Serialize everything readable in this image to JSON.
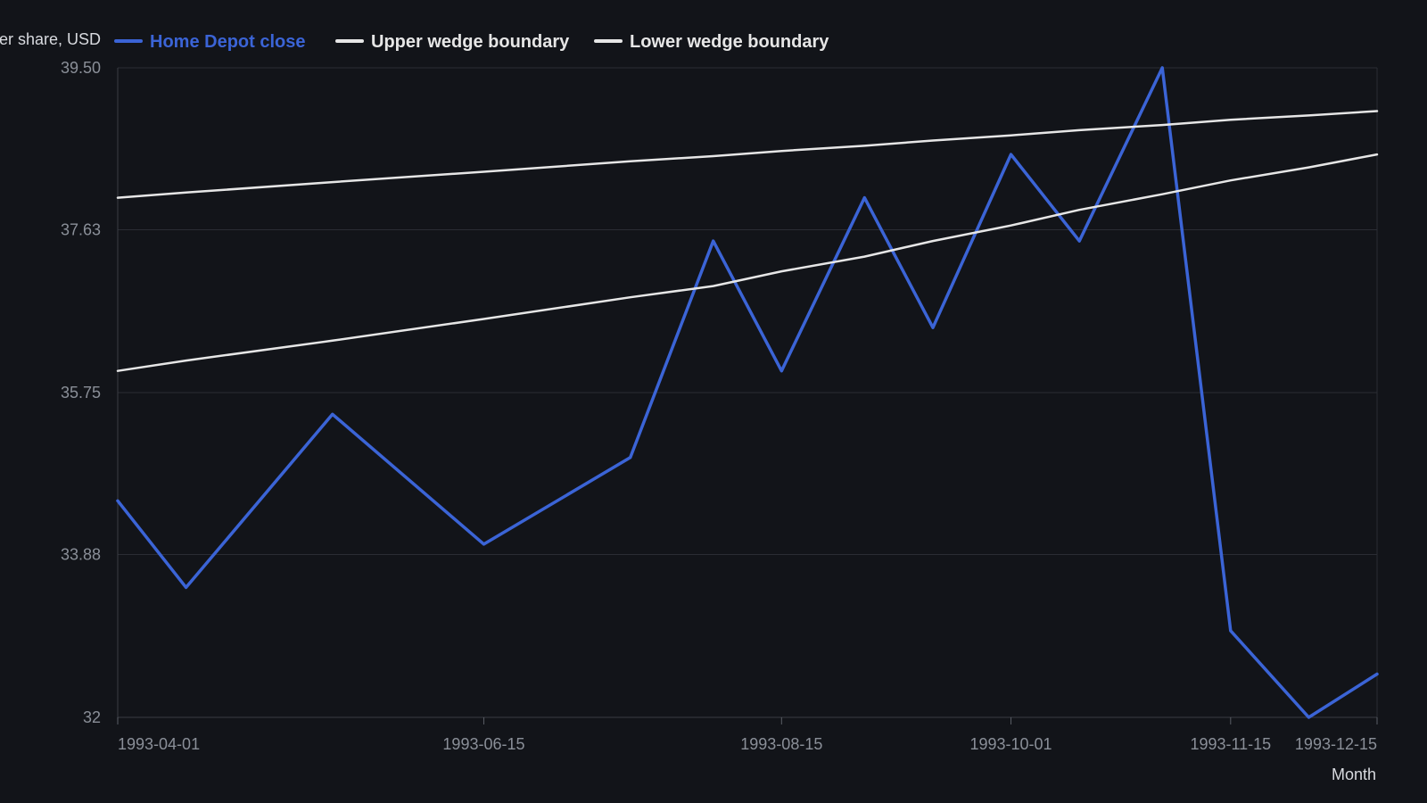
{
  "chart_data": {
    "type": "line",
    "title": "",
    "xlabel": "Month",
    "ylabel": "Close price per share, USD",
    "x": [
      "1993-04-01",
      "1993-04-15",
      "1993-05-15",
      "1993-06-15",
      "1993-07-15",
      "1993-08-01",
      "1993-08-15",
      "1993-09-01",
      "1993-09-15",
      "1993-10-01",
      "1993-10-15",
      "1993-11-01",
      "1993-11-15",
      "1993-12-01",
      "1993-12-15"
    ],
    "x_ticks": [
      "1993-04-01",
      "1993-06-15",
      "1993-08-15",
      "1993-10-01",
      "1993-11-15",
      "1993-12-15"
    ],
    "ylim": [
      32,
      39.5
    ],
    "y_ticks": [
      "32",
      "33.88",
      "35.75",
      "37.63",
      "39.50"
    ],
    "grid": true,
    "legend_position": "top-left",
    "series": [
      {
        "name": "Home Depot close",
        "color": "#3b64d6",
        "values": [
          34.5,
          33.5,
          35.5,
          34.0,
          35.0,
          37.5,
          36.0,
          38.0,
          36.5,
          38.5,
          37.5,
          39.5,
          33.0,
          32.0,
          32.5
        ]
      },
      {
        "name": "Upper wedge boundary",
        "color": "#e6e6e6",
        "values": [
          38.0,
          38.06,
          38.18,
          38.3,
          38.42,
          38.48,
          38.54,
          38.6,
          38.66,
          38.72,
          38.78,
          38.84,
          38.9,
          38.95,
          39.0
        ]
      },
      {
        "name": "Lower wedge boundary",
        "color": "#e6e6e6",
        "values": [
          36.0,
          36.12,
          36.35,
          36.6,
          36.85,
          36.98,
          37.15,
          37.32,
          37.5,
          37.68,
          37.86,
          38.04,
          38.2,
          38.35,
          38.5
        ]
      }
    ]
  }
}
